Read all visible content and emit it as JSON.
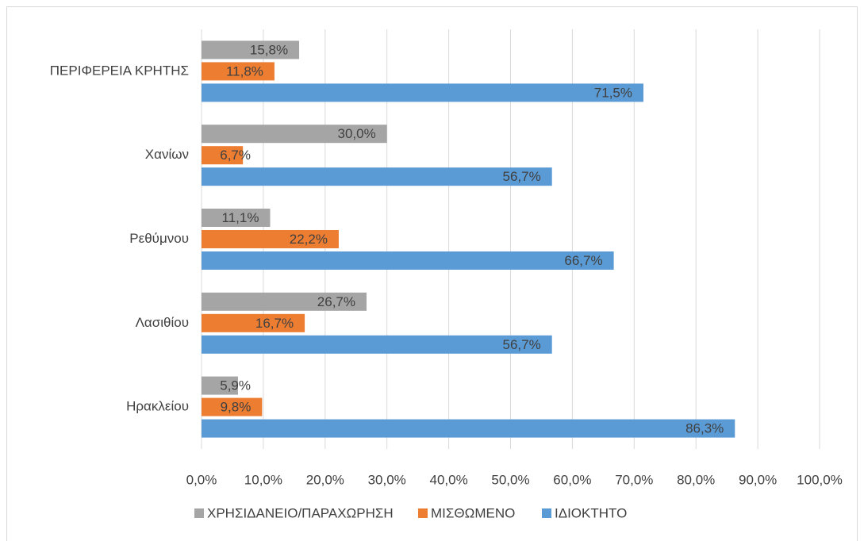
{
  "chart_data": {
    "type": "bar",
    "orientation": "horizontal",
    "categories": [
      "ΠΕΡΙΦΕΡΕΙΑ ΚΡΗΤΗΣ",
      "Χανίων",
      "Ρεθύμνου",
      "Λασιθίου",
      "Ηρακλείου"
    ],
    "series": [
      {
        "name": "ΧΡΗΣΙΔΑΝΕΙΟ/ΠΑΡΑΧΩΡΗΣΗ",
        "color": "#a5a5a5",
        "values": [
          15.8,
          30.0,
          11.1,
          26.7,
          5.9
        ],
        "value_labels": [
          "15,8%",
          "30,0%",
          "11,1%",
          "26,7%",
          "5,9%"
        ]
      },
      {
        "name": "ΜΙΣΘΩΜΕΝΟ",
        "color": "#ed7d31",
        "values": [
          11.8,
          6.7,
          22.2,
          16.7,
          9.8
        ],
        "value_labels": [
          "11,8%",
          "6,7%",
          "22,2%",
          "16,7%",
          "9,8%"
        ]
      },
      {
        "name": "ΙΔΙΟΚΤΗΤΟ",
        "color": "#5b9bd5",
        "values": [
          71.5,
          56.7,
          66.7,
          56.7,
          86.3
        ],
        "value_labels": [
          "71,5%",
          "56,7%",
          "66,7%",
          "56,7%",
          "86,3%"
        ]
      }
    ],
    "xlim": [
      0,
      100
    ],
    "xticks": [
      {
        "value": 0,
        "label": "0,0%"
      },
      {
        "value": 10,
        "label": "10,0%"
      },
      {
        "value": 20,
        "label": "20,0%"
      },
      {
        "value": 30,
        "label": "30,0%"
      },
      {
        "value": 40,
        "label": "40,0%"
      },
      {
        "value": 50,
        "label": "50,0%"
      },
      {
        "value": 60,
        "label": "60,0%"
      },
      {
        "value": 70,
        "label": "70,0%"
      },
      {
        "value": 80,
        "label": "80,0%"
      },
      {
        "value": 90,
        "label": "90,0%"
      },
      {
        "value": 100,
        "label": "100,0%"
      }
    ],
    "grid": true,
    "legend": "bottom"
  }
}
